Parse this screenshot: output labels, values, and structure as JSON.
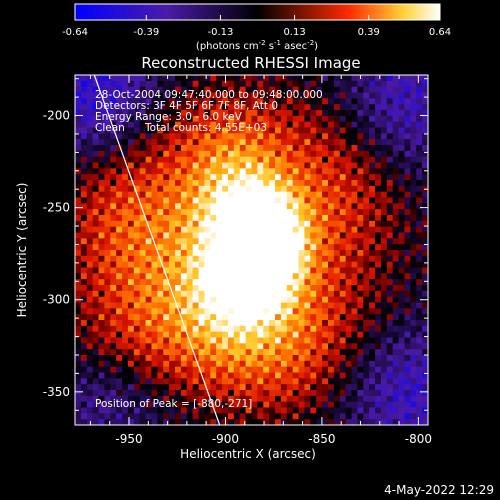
{
  "colorbar": {
    "ticks": [
      "-0.64",
      "-0.39",
      "-0.13",
      "0.13",
      "0.39",
      "0.64"
    ],
    "tick_values": [
      -0.64,
      -0.39,
      -0.13,
      0.13,
      0.39,
      0.64
    ],
    "range": [
      -0.64,
      0.64
    ],
    "unit_main": "(photons cm",
    "unit_exp1": "-2",
    "unit_mid1": " s",
    "unit_exp2": "-1",
    "unit_mid2": " asec",
    "unit_exp3": "-2",
    "unit_end": ")"
  },
  "annotations": {
    "time": "28-Oct-2004 09:47:40.000 to 09:48:00.000",
    "detectors": "Detectors: 3F 4F 5F 6F 7F 8F, Att 0",
    "energy": "Energy Range: 3.0 - 6.0 keV",
    "method": "Clean",
    "counts": "Total counts: 4.55E+03",
    "peak": "Position of Peak = [-880,-271]"
  },
  "footer": {
    "date": "4-May-2022 12:29"
  },
  "colors": {
    "background": "#000000",
    "text": "#ffffff",
    "limb": "#ffffff"
  },
  "chart_data": {
    "type": "heatmap",
    "title": "Reconstructed RHESSI Image",
    "xlabel": "Heliocentric X (arcsec)",
    "ylabel": "Heliocentric Y (arcsec)",
    "xlim": [
      -978,
      -795
    ],
    "ylim": [
      -368,
      -178
    ],
    "xticks": [
      -950,
      -900,
      -850,
      -800
    ],
    "yticks": [
      -200,
      -250,
      -300,
      -350
    ],
    "xtick_labels": [
      "-950",
      "-900",
      "-850",
      "-800"
    ],
    "ytick_labels": [
      "-200",
      "-250",
      "-300",
      "-350"
    ],
    "colormap": "hot (negative values blue-purple)",
    "value_range": [
      -0.64,
      0.64
    ],
    "peak": {
      "x": -880,
      "y": -271,
      "value": 0.64
    },
    "limb_line": [
      [
        -968,
        -178
      ],
      [
        -903,
        -368
      ]
    ],
    "sources": [
      {
        "x": -880,
        "y": -268,
        "sx": 14,
        "sy": 18,
        "amp": 0.72
      },
      {
        "x": -892,
        "y": -292,
        "sx": 16,
        "sy": 18,
        "amp": 0.42
      },
      {
        "x": -895,
        "y": -245,
        "sx": 18,
        "sy": 25,
        "amp": 0.34
      },
      {
        "x": -918,
        "y": -262,
        "sx": 40,
        "sy": 45,
        "amp": 0.3
      },
      {
        "x": -855,
        "y": -275,
        "sx": 32,
        "sy": 50,
        "amp": 0.24
      },
      {
        "x": -925,
        "y": -315,
        "sx": 35,
        "sy": 30,
        "amp": 0.28
      },
      {
        "x": -872,
        "y": -330,
        "sx": 30,
        "sy": 25,
        "amp": 0.22
      },
      {
        "x": -955,
        "y": -250,
        "sx": 22,
        "sy": 30,
        "amp": 0.18
      },
      {
        "x": -830,
        "y": -232,
        "sx": 25,
        "sy": 25,
        "amp": 0.16
      },
      {
        "x": -900,
        "y": -205,
        "sx": 32,
        "sy": 18,
        "amp": 0.12
      }
    ],
    "background_dips": [
      {
        "x": -965,
        "y": -190,
        "sx": 22,
        "sy": 25,
        "amp": -0.4
      },
      {
        "x": -808,
        "y": -195,
        "sx": 22,
        "sy": 30,
        "amp": -0.3
      },
      {
        "x": -805,
        "y": -350,
        "sx": 25,
        "sy": 25,
        "amp": -0.32
      },
      {
        "x": -960,
        "y": -355,
        "sx": 25,
        "sy": 18,
        "amp": -0.2
      }
    ]
  }
}
